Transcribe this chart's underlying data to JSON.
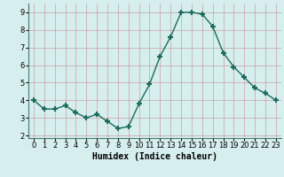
{
  "x": [
    0,
    1,
    2,
    3,
    4,
    5,
    6,
    7,
    8,
    9,
    10,
    11,
    12,
    13,
    14,
    15,
    16,
    17,
    18,
    19,
    20,
    21,
    22,
    23
  ],
  "y": [
    4.0,
    3.5,
    3.5,
    3.7,
    3.3,
    3.0,
    3.2,
    2.8,
    2.4,
    2.5,
    3.8,
    4.9,
    6.5,
    7.6,
    9.0,
    9.0,
    8.9,
    8.2,
    6.7,
    5.9,
    5.3,
    4.7,
    4.4,
    4.0
  ],
  "line_color": "#1a6b5a",
  "marker": "+",
  "marker_size": 4,
  "bg_color": "#d6eeee",
  "grid_color": "#c8a0a0",
  "xlabel": "Humidex (Indice chaleur)",
  "xlim": [
    -0.5,
    23.5
  ],
  "ylim": [
    1.85,
    9.5
  ],
  "yticks": [
    2,
    3,
    4,
    5,
    6,
    7,
    8,
    9
  ],
  "xticks": [
    0,
    1,
    2,
    3,
    4,
    5,
    6,
    7,
    8,
    9,
    10,
    11,
    12,
    13,
    14,
    15,
    16,
    17,
    18,
    19,
    20,
    21,
    22,
    23
  ],
  "xlabel_fontsize": 7,
  "tick_fontsize": 6,
  "line_width": 1.0,
  "marker_thickness": 1.5
}
